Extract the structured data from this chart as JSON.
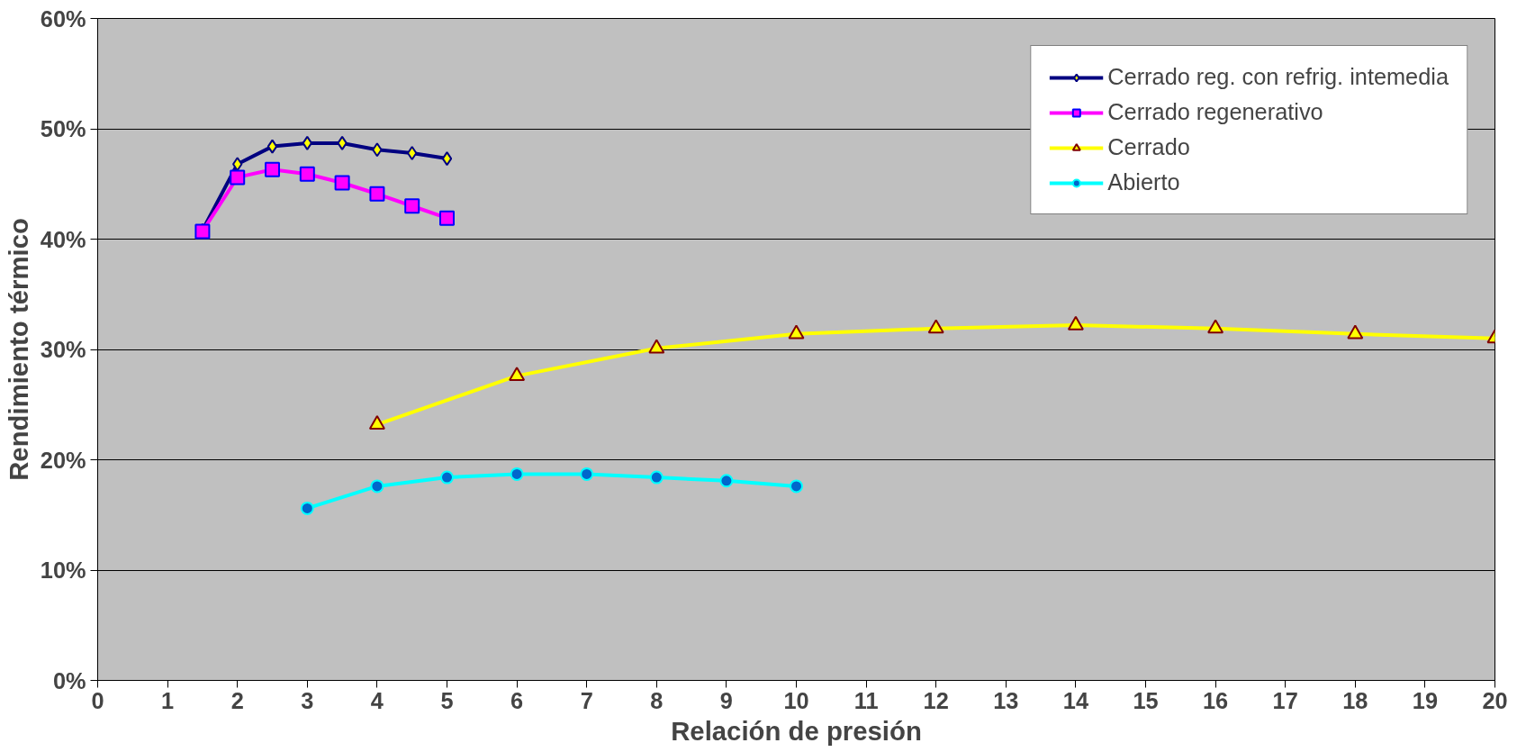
{
  "chart_data": {
    "type": "line",
    "xlabel": "Relación de presión",
    "ylabel": "Rendimiento térmico",
    "xlim": [
      0,
      20
    ],
    "xticks": [
      0,
      1,
      2,
      3,
      4,
      5,
      6,
      7,
      8,
      9,
      10,
      11,
      12,
      13,
      14,
      15,
      16,
      17,
      18,
      19,
      20
    ],
    "ylim": [
      0,
      60
    ],
    "yticks": [
      {
        "value": 0,
        "label": "0%"
      },
      {
        "value": 10,
        "label": "10%"
      },
      {
        "value": 20,
        "label": "20%"
      },
      {
        "value": 30,
        "label": "30%"
      },
      {
        "value": 40,
        "label": "40%"
      },
      {
        "value": 50,
        "label": "50%"
      },
      {
        "value": 60,
        "label": "60%"
      }
    ],
    "grid": "y",
    "legend": "top right",
    "line_style": "solid",
    "series": [
      {
        "name": "Cerrado reg. con refrig. intemedia",
        "color": "#000080",
        "marker": "diamond",
        "x": [
          1.5,
          2,
          2.5,
          3,
          3.5,
          4,
          4.5,
          5
        ],
        "values": [
          40.8,
          46.8,
          48.4,
          48.7,
          48.7,
          48.1,
          47.8,
          47.3
        ]
      },
      {
        "name": "Cerrado regenerativo",
        "color": "#ff00ff",
        "marker": "square",
        "x": [
          1.5,
          2,
          2.5,
          3,
          3.5,
          4,
          4.5,
          5
        ],
        "values": [
          40.7,
          45.6,
          46.3,
          45.9,
          45.1,
          44.1,
          43.0,
          41.9
        ]
      },
      {
        "name": "Cerrado",
        "color": "#ffff00",
        "marker": "triangle",
        "x": [
          4,
          6,
          8,
          10,
          12,
          14,
          16,
          18,
          20
        ],
        "values": [
          23.2,
          27.6,
          30.1,
          31.4,
          31.9,
          32.2,
          31.9,
          31.4,
          31.0
        ]
      },
      {
        "name": "Abierto",
        "color": "#00ffff",
        "marker": "circle",
        "x": [
          3,
          4,
          5,
          6,
          7,
          8,
          9,
          10
        ],
        "values": [
          15.6,
          17.6,
          18.4,
          18.7,
          18.7,
          18.4,
          18.1,
          17.6
        ]
      }
    ]
  }
}
